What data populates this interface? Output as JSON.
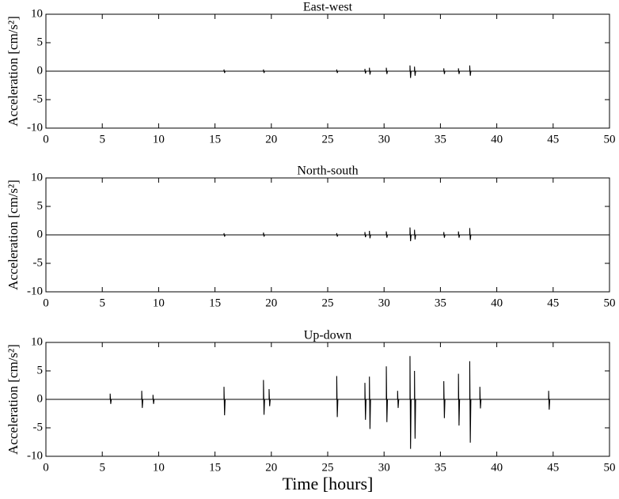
{
  "chart_data": [
    {
      "type": "line",
      "title": "East-west",
      "ylabel": "Acceleration [cm/s²]",
      "xlim": [
        0,
        50
      ],
      "ylim": [
        -10,
        10
      ],
      "xticks": [
        0,
        5,
        10,
        15,
        20,
        25,
        30,
        35,
        40,
        45,
        50
      ],
      "yticks": [
        -10,
        -5,
        0,
        5,
        10
      ],
      "x": [
        0,
        15.8,
        15.8,
        15.85,
        15.9,
        19.3,
        19.3,
        19.35,
        19.4,
        25.8,
        25.8,
        25.85,
        25.9,
        28.3,
        28.3,
        28.35,
        28.4,
        28.7,
        28.7,
        28.75,
        28.8,
        30.2,
        30.2,
        30.25,
        30.3,
        32.3,
        32.3,
        32.35,
        32.4,
        32.7,
        32.7,
        32.75,
        32.8,
        35.3,
        35.3,
        35.35,
        35.4,
        36.6,
        36.6,
        36.65,
        36.7,
        37.6,
        37.6,
        37.65,
        37.7,
        50
      ],
      "series": [
        {
          "color": "#000000",
          "values": [
            0,
            0,
            0.3,
            -0.3,
            0,
            0,
            0.3,
            -0.3,
            0,
            0,
            0.3,
            -0.3,
            0,
            0,
            0.4,
            -0.4,
            0,
            0,
            0.6,
            -0.6,
            0,
            0,
            0.6,
            -0.5,
            0,
            0,
            1.0,
            -1.2,
            0,
            0,
            0.8,
            -0.8,
            0,
            0,
            0.5,
            -0.5,
            0,
            0,
            0.5,
            -0.5,
            0,
            0,
            1.0,
            -0.8,
            0,
            0
          ]
        }
      ]
    },
    {
      "type": "line",
      "title": "North-south",
      "ylabel": "Acceleration [cm/s²]",
      "xlim": [
        0,
        50
      ],
      "ylim": [
        -10,
        10
      ],
      "xticks": [
        0,
        5,
        10,
        15,
        20,
        25,
        30,
        35,
        40,
        45,
        50
      ],
      "yticks": [
        -10,
        -5,
        0,
        5,
        10
      ],
      "x": [
        0,
        15.8,
        15.8,
        15.85,
        15.9,
        19.3,
        19.3,
        19.35,
        19.4,
        25.8,
        25.8,
        25.85,
        25.9,
        28.3,
        28.3,
        28.35,
        28.4,
        28.7,
        28.7,
        28.75,
        28.8,
        30.2,
        30.2,
        30.25,
        30.3,
        32.3,
        32.3,
        32.35,
        32.4,
        32.7,
        32.7,
        32.75,
        32.8,
        35.3,
        35.3,
        35.35,
        35.4,
        36.6,
        36.6,
        36.65,
        36.7,
        37.6,
        37.6,
        37.65,
        37.7,
        50
      ],
      "series": [
        {
          "color": "#000000",
          "values": [
            0,
            0,
            0.3,
            -0.3,
            0,
            0,
            0.4,
            -0.3,
            0,
            0,
            0.3,
            -0.3,
            0,
            0,
            0.5,
            -0.4,
            0,
            0,
            0.7,
            -0.6,
            0,
            0,
            0.6,
            -0.5,
            0,
            0,
            1.3,
            -1.1,
            0,
            0,
            0.9,
            -0.8,
            0,
            0,
            0.5,
            -0.5,
            0,
            0,
            0.6,
            -0.5,
            0,
            0,
            1.2,
            -0.9,
            0,
            0
          ]
        }
      ]
    },
    {
      "type": "line",
      "title": "Up-down",
      "ylabel": "Acceleration [cm/s²]",
      "xlabel": "Time [hours]",
      "xlim": [
        0,
        50
      ],
      "ylim": [
        -10,
        10
      ],
      "xticks": [
        0,
        5,
        10,
        15,
        20,
        25,
        30,
        35,
        40,
        45,
        50
      ],
      "yticks": [
        -10,
        -5,
        0,
        5,
        10
      ],
      "x": [
        0,
        5.7,
        5.7,
        5.75,
        5.8,
        8.5,
        8.5,
        8.55,
        8.6,
        9.5,
        9.5,
        9.55,
        9.6,
        15.8,
        15.8,
        15.85,
        15.9,
        19.3,
        19.3,
        19.35,
        19.4,
        19.8,
        19.8,
        19.85,
        19.9,
        25.8,
        25.8,
        25.85,
        25.9,
        28.3,
        28.3,
        28.35,
        28.4,
        28.7,
        28.7,
        28.75,
        28.8,
        30.2,
        30.2,
        30.25,
        30.3,
        31.2,
        31.2,
        31.25,
        31.3,
        32.3,
        32.3,
        32.35,
        32.4,
        32.7,
        32.7,
        32.75,
        32.8,
        35.3,
        35.3,
        35.35,
        35.4,
        36.6,
        36.6,
        36.65,
        36.7,
        37.6,
        37.6,
        37.65,
        37.7,
        38.5,
        38.5,
        38.55,
        38.6,
        44.6,
        44.6,
        44.65,
        44.7,
        50
      ],
      "series": [
        {
          "color": "#000000",
          "values": [
            0,
            0,
            1.0,
            -0.8,
            0,
            0,
            1.5,
            -1.5,
            0,
            0,
            0.8,
            -0.8,
            0,
            0,
            2.2,
            -2.8,
            0,
            0,
            3.4,
            -2.7,
            0,
            0,
            1.8,
            -1.2,
            0,
            0,
            4.1,
            -3.1,
            0,
            0,
            2.9,
            -3.6,
            0,
            0,
            4.0,
            -5.2,
            0,
            0,
            5.8,
            -4.0,
            0,
            0,
            1.5,
            -1.5,
            0,
            0,
            7.6,
            -8.7,
            0,
            0,
            5.0,
            -6.9,
            0,
            0,
            3.2,
            -3.3,
            0,
            0,
            4.5,
            -4.6,
            0,
            0,
            6.7,
            -7.6,
            0,
            0,
            2.2,
            -1.6,
            0,
            0,
            1.5,
            -1.8,
            0,
            0
          ]
        }
      ]
    }
  ]
}
